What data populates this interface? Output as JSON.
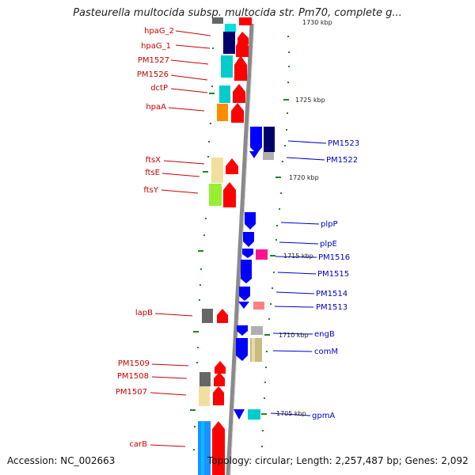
{
  "title": "Pasteurella multocida subsp. multocida str. Pm70, complete g...",
  "accession": "Accession: NC_002663",
  "summary": "Topology: circular; Length: 2,257,487 bp; Genes: 2,092",
  "kbp_markers": [
    "1730 kbp",
    "1725 kbp",
    "1720 kbp",
    "1715 kbp",
    "1710 kbp",
    "1705 kbp"
  ],
  "genes_left": [
    "hpaG_2",
    "hpaG_1",
    "PM1527",
    "PM1526",
    "dctP",
    "hpaA",
    "ftsX",
    "ftsE",
    "ftsY",
    "lapB",
    "PM1509",
    "PM1508",
    "PM1507",
    "carB"
  ],
  "genes_right": [
    "PM1523",
    "PM1522",
    "plpP",
    "plpE",
    "PM1516",
    "PM1515",
    "PM1514",
    "PM1513",
    "engB",
    "comM",
    "gpmA"
  ],
  "colors": {
    "red": "#ff0000",
    "blue": "#0000ff",
    "navy": "#00006b",
    "cyan": "#00cccc",
    "orange": "#ff8c00",
    "tan": "#f0e0a0",
    "lime": "#99ee33",
    "gray": "#666666",
    "magenta": "#ff1493",
    "pink": "#ff8080",
    "khaki": "#c8bc80",
    "ltgray": "#b0b0b0",
    "skyblue": "#1e90ff",
    "ticks": "#008000",
    "backbone": "#999999"
  }
}
